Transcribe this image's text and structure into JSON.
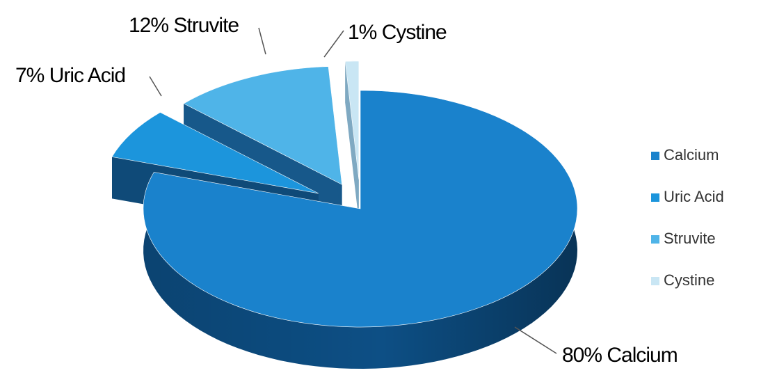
{
  "chart_data": {
    "type": "pie",
    "style": "3d-exploded",
    "categories": [
      "Calcium",
      "Uric Acid",
      "Struvite",
      "Cystine"
    ],
    "values": [
      80,
      7,
      12,
      1
    ],
    "slice_labels": [
      "80% Calcium",
      "7% Uric Acid",
      "12% Struvite",
      "1% Cystine"
    ],
    "colors": {
      "Calcium": "#1a82cc",
      "Uric Acid": "#1c95dc",
      "Struvite": "#4fb4e8",
      "Cystine": "#c9e6f4"
    },
    "side_colors": {
      "Calcium": "#0d4f85",
      "Uric Acid": "#0f4a78",
      "Struvite": "#17588a",
      "Cystine": "#7fa9c2"
    },
    "legend": {
      "position": "right",
      "entries": [
        "Calcium",
        "Uric Acid",
        "Struvite",
        "Cystine"
      ]
    },
    "title": ""
  }
}
